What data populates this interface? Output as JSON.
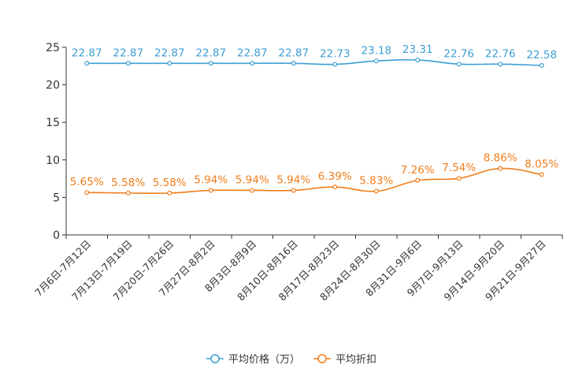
{
  "chart_data": {
    "type": "line",
    "title": "",
    "xlabel": "",
    "ylabel": "",
    "ylim": [
      0,
      25
    ],
    "yticks": [
      0,
      5,
      10,
      15,
      20,
      25
    ],
    "grid": false,
    "legend_position": "bottom",
    "categories": [
      "7月6日-7月12日",
      "7月13日-7月19日",
      "7月20日-7月26日",
      "7月27日-8月2日",
      "8月3日-8月9日",
      "8月10日-8月16日",
      "8月17日-8月23日",
      "8月24日-8月30日",
      "8月31日-9月6日",
      "9月7日-9月13日",
      "9月14日-9月20日",
      "9月21日-9月27日"
    ],
    "series": [
      {
        "name": "平均价格（万）",
        "color": "#3d9fd3",
        "values": [
          22.87,
          22.87,
          22.87,
          22.87,
          22.87,
          22.87,
          22.73,
          23.18,
          23.31,
          22.76,
          22.76,
          22.58
        ],
        "labels": [
          "22.87",
          "22.87",
          "22.87",
          "22.87",
          "22.87",
          "22.87",
          "22.73",
          "23.18",
          "23.31",
          "22.76",
          "22.76",
          "22.58"
        ]
      },
      {
        "name": "平均折扣",
        "color": "#f07d1a",
        "values": [
          5.65,
          5.58,
          5.58,
          5.94,
          5.94,
          5.94,
          6.39,
          5.83,
          7.26,
          7.54,
          8.86,
          8.05
        ],
        "labels": [
          "5.65%",
          "5.58%",
          "5.58%",
          "5.94%",
          "5.94%",
          "5.94%",
          "6.39%",
          "5.83%",
          "7.26%",
          "7.54%",
          "8.86%",
          "8.05%"
        ]
      }
    ]
  }
}
